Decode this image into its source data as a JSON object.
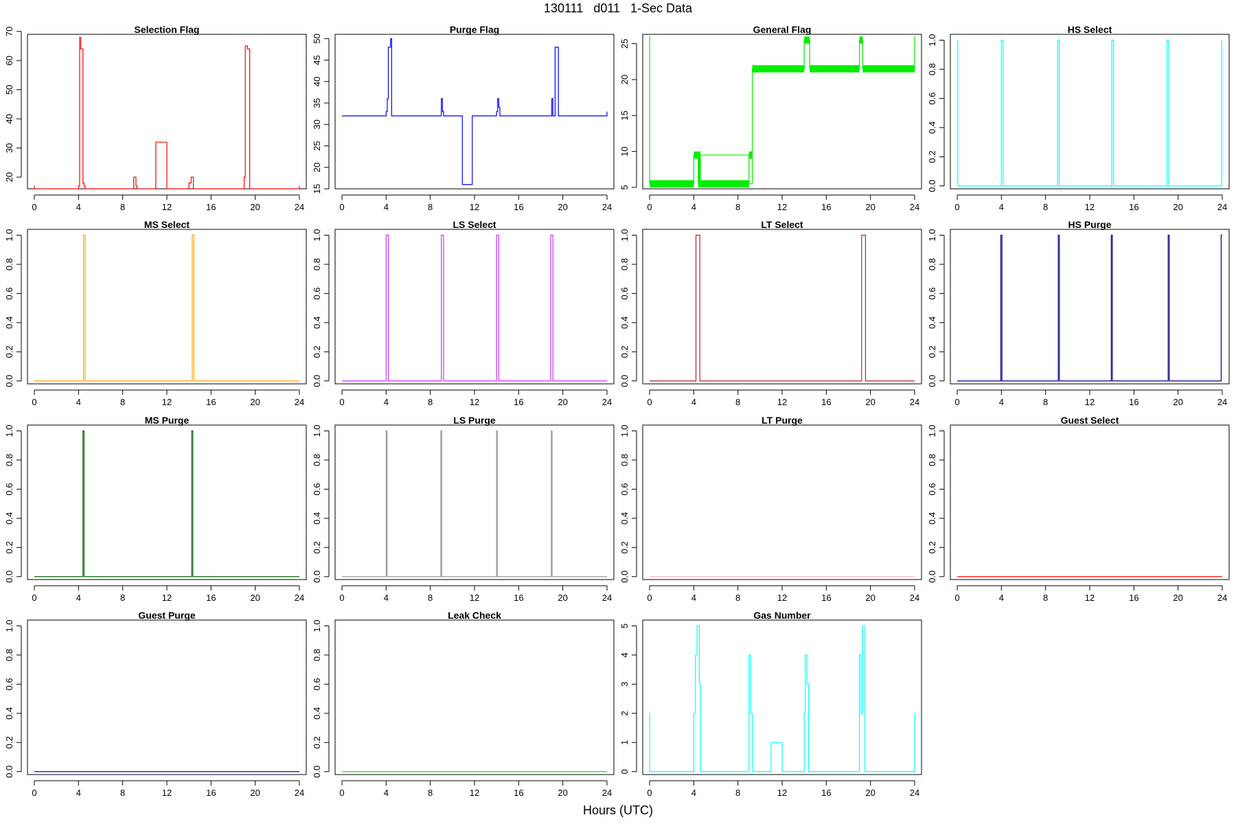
{
  "figure": {
    "title": "130111   d011   1-Sec Data",
    "xlabel": "Hours (UTC)"
  },
  "chart_data": [
    {
      "type": "line",
      "title": "Selection Flag",
      "color": "#ff0000",
      "xlim": [
        0,
        24
      ],
      "xticks": [
        0,
        4,
        8,
        12,
        16,
        20,
        24
      ],
      "ylim": [
        16,
        69
      ],
      "yticks": [
        20,
        30,
        40,
        50,
        60,
        70
      ],
      "series": [
        {
          "x": [
            0,
            0.01,
            0.01,
            4,
            4,
            4.1,
            4.1,
            4.2,
            4.2,
            4.4,
            4.4,
            4.5,
            4.5,
            4.6,
            4.6,
            9.0,
            9.0,
            9.2,
            9.2,
            9.3,
            9.3,
            11.0,
            11.0,
            12.0,
            12.0,
            14.0,
            14.0,
            14.2,
            14.2,
            14.4,
            14.4,
            19.0,
            19.0,
            19.1,
            19.1,
            19.3,
            19.3,
            19.5,
            19.5,
            24,
            24
          ],
          "y": [
            17,
            17,
            16,
            16,
            17,
            17,
            68,
            68,
            64,
            64,
            18,
            18,
            17,
            17,
            16,
            16,
            20,
            20,
            17,
            17,
            16,
            16,
            32,
            32,
            16,
            16,
            18,
            18,
            20,
            20,
            16,
            16,
            20,
            20,
            65,
            65,
            64,
            64,
            16,
            16,
            17
          ]
        }
      ]
    },
    {
      "type": "line",
      "title": "Purge Flag",
      "color": "#0000ff",
      "xlim": [
        0,
        24
      ],
      "xticks": [
        0,
        4,
        8,
        12,
        16,
        20,
        24
      ],
      "ylim": [
        15,
        51
      ],
      "yticks": [
        15,
        20,
        25,
        30,
        35,
        40,
        45,
        50
      ],
      "series": [
        {
          "x": [
            0,
            4.0,
            4.0,
            4.1,
            4.1,
            4.2,
            4.2,
            4.4,
            4.4,
            4.5,
            4.5,
            9.0,
            9.0,
            9.1,
            9.1,
            9.2,
            9.2,
            10.9,
            10.9,
            11.8,
            11.8,
            14.0,
            14.0,
            14.1,
            14.1,
            14.2,
            14.2,
            14.3,
            14.3,
            19.0,
            19.0,
            19.1,
            19.1,
            19.3,
            19.3,
            19.6,
            19.6,
            24,
            24
          ],
          "y": [
            32,
            32,
            33,
            33,
            36,
            36,
            48,
            48,
            50,
            50,
            32,
            32,
            36,
            36,
            33,
            33,
            32,
            32,
            16,
            16,
            32,
            32,
            33,
            33,
            36,
            36,
            34,
            34,
            32,
            32,
            36,
            36,
            32,
            32,
            48,
            48,
            32,
            32,
            33
          ]
        }
      ]
    },
    {
      "type": "line",
      "title": "General Flag",
      "color": "#00ee00",
      "xlim": [
        0,
        24
      ],
      "xticks": [
        0,
        4,
        8,
        12,
        16,
        20,
        24
      ],
      "ylim": [
        4.8,
        26.3
      ],
      "yticks": [
        5,
        10,
        15,
        20,
        25
      ],
      "series": [
        {
          "x": [
            0,
            0.01,
            0.01,
            4.0,
            4.0,
            4.4,
            4.4,
            4.6,
            4.6,
            9.0,
            9.0,
            9.3,
            9.3,
            14.0,
            14.0,
            14.5,
            14.5,
            19.0,
            19.0,
            19.3,
            19.3,
            24,
            24
          ],
          "y": [
            26,
            26,
            5.5,
            5.5,
            9.5,
            9.5,
            5.5,
            5.5,
            9.5,
            9.5,
            5.5,
            5.5,
            21.5,
            21.5,
            25.5,
            25.5,
            21.5,
            21.5,
            25.5,
            25.5,
            21.5,
            21.5,
            26
          ]
        }
      ],
      "bands": [
        {
          "x0": 0.01,
          "x1": 4.0,
          "y0": 5,
          "y1": 6
        },
        {
          "x0": 4.0,
          "x1": 4.4,
          "y0": 9,
          "y1": 10
        },
        {
          "x0": 4.4,
          "x1": 4.6,
          "y0": 5,
          "y1": 10
        },
        {
          "x0": 4.6,
          "x1": 9.0,
          "y0": 5,
          "y1": 6
        },
        {
          "x0": 9.0,
          "x1": 9.3,
          "y0": 9,
          "y1": 10
        },
        {
          "x0": 9.3,
          "x1": 14.0,
          "y0": 21,
          "y1": 22
        },
        {
          "x0": 14.0,
          "x1": 14.5,
          "y0": 25,
          "y1": 26
        },
        {
          "x0": 14.5,
          "x1": 19.0,
          "y0": 21,
          "y1": 22
        },
        {
          "x0": 19.0,
          "x1": 19.3,
          "y0": 25,
          "y1": 26
        },
        {
          "x0": 19.3,
          "x1": 24,
          "y0": 21,
          "y1": 22
        }
      ]
    },
    {
      "type": "line",
      "title": "HS Select",
      "color": "#00ffff",
      "xlim": [
        0,
        24
      ],
      "xticks": [
        0,
        4,
        8,
        12,
        16,
        20,
        24
      ],
      "ylim": [
        -0.02,
        1.04
      ],
      "yticks": [
        0.0,
        0.2,
        0.4,
        0.6,
        0.8,
        1.0
      ],
      "series": [
        {
          "x": [
            0,
            0.05,
            0.05,
            4.0,
            4.0,
            4.15,
            4.15,
            9.1,
            9.1,
            9.25,
            9.25,
            14.0,
            14.0,
            14.15,
            14.15,
            19.0,
            19.0,
            19.15,
            19.15,
            23.95,
            23.95,
            24
          ],
          "y": [
            1,
            1,
            0,
            0,
            1,
            1,
            0,
            0,
            1,
            1,
            0,
            0,
            1,
            1,
            0,
            0,
            1,
            1,
            0,
            0,
            1,
            1
          ]
        }
      ]
    },
    {
      "type": "line",
      "title": "MS Select",
      "color": "#ffa500",
      "xlim": [
        0,
        24
      ],
      "xticks": [
        0,
        4,
        8,
        12,
        16,
        20,
        24
      ],
      "ylim": [
        -0.02,
        1.04
      ],
      "yticks": [
        0.0,
        0.2,
        0.4,
        0.6,
        0.8,
        1.0
      ],
      "series": [
        {
          "x": [
            0,
            4.45,
            4.45,
            4.6,
            4.6,
            14.3,
            14.3,
            14.45,
            14.45,
            24
          ],
          "y": [
            0,
            0,
            1,
            1,
            0,
            0,
            1,
            1,
            0,
            0
          ]
        }
      ]
    },
    {
      "type": "line",
      "title": "LS Select",
      "color": "#cc33ff",
      "xlim": [
        0,
        24
      ],
      "xticks": [
        0,
        4,
        8,
        12,
        16,
        20,
        24
      ],
      "ylim": [
        -0.02,
        1.04
      ],
      "yticks": [
        0.0,
        0.2,
        0.4,
        0.6,
        0.8,
        1.0
      ],
      "series": [
        {
          "x": [
            0,
            4.0,
            4.0,
            4.2,
            4.2,
            9.0,
            9.0,
            9.2,
            9.2,
            14.0,
            14.0,
            14.2,
            14.2,
            18.9,
            18.9,
            19.1,
            19.1,
            24
          ],
          "y": [
            0,
            0,
            1,
            1,
            0,
            0,
            1,
            1,
            0,
            0,
            1,
            1,
            0,
            0,
            1,
            1,
            0,
            0
          ]
        }
      ]
    },
    {
      "type": "line",
      "title": "LT Select",
      "color": "#a52a2a",
      "xlim": [
        0,
        24
      ],
      "xticks": [
        0,
        4,
        8,
        12,
        16,
        20,
        24
      ],
      "ylim": [
        -0.02,
        1.04
      ],
      "yticks": [
        0.0,
        0.2,
        0.4,
        0.6,
        0.8,
        1.0
      ],
      "series": [
        {
          "x": [
            0,
            4.2,
            4.2,
            4.55,
            4.55,
            19.2,
            19.2,
            19.55,
            19.55,
            24
          ],
          "y": [
            0,
            0,
            1,
            1,
            0,
            0,
            1,
            1,
            0,
            0
          ]
        }
      ]
    },
    {
      "type": "line",
      "title": "HS Purge",
      "color": "#000080",
      "xlim": [
        0,
        24
      ],
      "xticks": [
        0,
        4,
        8,
        12,
        16,
        20,
        24
      ],
      "ylim": [
        -0.02,
        1.04
      ],
      "yticks": [
        0.0,
        0.2,
        0.4,
        0.6,
        0.8,
        1.0
      ],
      "series": [
        {
          "x": [
            0,
            3.95,
            3.95,
            4.05,
            4.05,
            9.15,
            9.15,
            9.25,
            9.25,
            13.95,
            13.95,
            14.05,
            14.05,
            19.1,
            19.1,
            19.2,
            19.2,
            23.9,
            23.9,
            24
          ],
          "y": [
            0,
            0,
            1,
            1,
            0,
            0,
            1,
            1,
            0,
            0,
            1,
            1,
            0,
            0,
            1,
            1,
            0,
            0,
            1,
            1
          ]
        }
      ]
    },
    {
      "type": "line",
      "title": "MS Purge",
      "color": "#006400",
      "xlim": [
        0,
        24
      ],
      "xticks": [
        0,
        4,
        8,
        12,
        16,
        20,
        24
      ],
      "ylim": [
        -0.02,
        1.04
      ],
      "yticks": [
        0.0,
        0.2,
        0.4,
        0.6,
        0.8,
        1.0
      ],
      "series": [
        {
          "x": [
            0,
            4.4,
            4.4,
            4.5,
            4.5,
            14.25,
            14.25,
            14.35,
            14.35,
            24
          ],
          "y": [
            0,
            0,
            1,
            1,
            0,
            0,
            1,
            1,
            0,
            0
          ]
        }
      ]
    },
    {
      "type": "line",
      "title": "LS Purge",
      "color": "#999999",
      "xlim": [
        0,
        24
      ],
      "xticks": [
        0,
        4,
        8,
        12,
        16,
        20,
        24
      ],
      "ylim": [
        -0.02,
        1.04
      ],
      "yticks": [
        0.0,
        0.2,
        0.4,
        0.6,
        0.8,
        1.0
      ],
      "series": [
        {
          "x": [
            0,
            4.0,
            4.0,
            4.08,
            4.08,
            8.95,
            8.95,
            9.03,
            9.03,
            14.0,
            14.0,
            14.08,
            14.08,
            18.95,
            18.95,
            19.03,
            19.03,
            24
          ],
          "y": [
            0,
            0,
            1,
            1,
            0,
            0,
            1,
            1,
            0,
            0,
            1,
            1,
            0,
            0,
            1,
            1,
            0,
            0
          ]
        }
      ]
    },
    {
      "type": "line",
      "title": "LT Purge",
      "color": "#ffb6c1",
      "xlim": [
        0,
        24
      ],
      "xticks": [
        0,
        4,
        8,
        12,
        16,
        20,
        24
      ],
      "ylim": [
        -0.02,
        1.04
      ],
      "yticks": [
        0.0,
        0.2,
        0.4,
        0.6,
        0.8,
        1.0
      ],
      "series": [
        {
          "x": [
            0,
            24
          ],
          "y": [
            0,
            0
          ]
        }
      ]
    },
    {
      "type": "line",
      "title": "Guest Select",
      "color": "#ff0000",
      "xlim": [
        0,
        24
      ],
      "xticks": [
        0,
        4,
        8,
        12,
        16,
        20,
        24
      ],
      "ylim": [
        -0.02,
        1.04
      ],
      "yticks": [
        0.0,
        0.2,
        0.4,
        0.6,
        0.8,
        1.0
      ],
      "series": [
        {
          "x": [
            0,
            24
          ],
          "y": [
            0,
            0
          ]
        }
      ]
    },
    {
      "type": "line",
      "title": "Guest Purge",
      "color": "#0000cc",
      "xlim": [
        0,
        24
      ],
      "xticks": [
        0,
        4,
        8,
        12,
        16,
        20,
        24
      ],
      "ylim": [
        -0.02,
        1.04
      ],
      "yticks": [
        0.0,
        0.2,
        0.4,
        0.6,
        0.8,
        1.0
      ],
      "series": [
        {
          "x": [
            0,
            24
          ],
          "y": [
            0,
            0
          ]
        }
      ]
    },
    {
      "type": "line",
      "title": "Leak Check",
      "color": "#22cc22",
      "xlim": [
        0,
        24
      ],
      "xticks": [
        0,
        4,
        8,
        12,
        16,
        20,
        24
      ],
      "ylim": [
        -0.02,
        1.04
      ],
      "yticks": [
        0.0,
        0.2,
        0.4,
        0.6,
        0.8,
        1.0
      ],
      "series": [
        {
          "x": [
            0,
            24
          ],
          "y": [
            0,
            0
          ]
        }
      ]
    },
    {
      "type": "line",
      "title": "Gas Number",
      "color": "#00ffff",
      "xlim": [
        0,
        24
      ],
      "xticks": [
        0,
        4,
        8,
        12,
        16,
        20,
        24
      ],
      "ylim": [
        -0.1,
        5.2
      ],
      "yticks": [
        0,
        1,
        2,
        3,
        4,
        5
      ],
      "series": [
        {
          "x": [
            0,
            0.01,
            0.01,
            4.0,
            4.0,
            4.15,
            4.15,
            4.3,
            4.3,
            4.5,
            4.5,
            4.6,
            4.6,
            9.0,
            9.0,
            9.15,
            9.15,
            9.3,
            9.3,
            11.0,
            11.0,
            12.0,
            12.0,
            14.0,
            14.0,
            14.1,
            14.1,
            14.25,
            14.25,
            14.4,
            14.4,
            19.0,
            19.0,
            19.15,
            19.15,
            19.3,
            19.3,
            19.5,
            19.5,
            24,
            24
          ],
          "y": [
            2,
            2,
            0,
            0,
            2,
            2,
            4,
            4,
            5,
            5,
            3,
            3,
            0,
            0,
            4,
            4,
            2,
            2,
            0,
            0,
            1,
            1,
            0,
            0,
            2,
            2,
            4,
            4,
            3,
            3,
            0,
            0,
            4,
            4,
            2,
            2,
            5,
            5,
            0,
            0,
            2
          ]
        }
      ]
    }
  ]
}
